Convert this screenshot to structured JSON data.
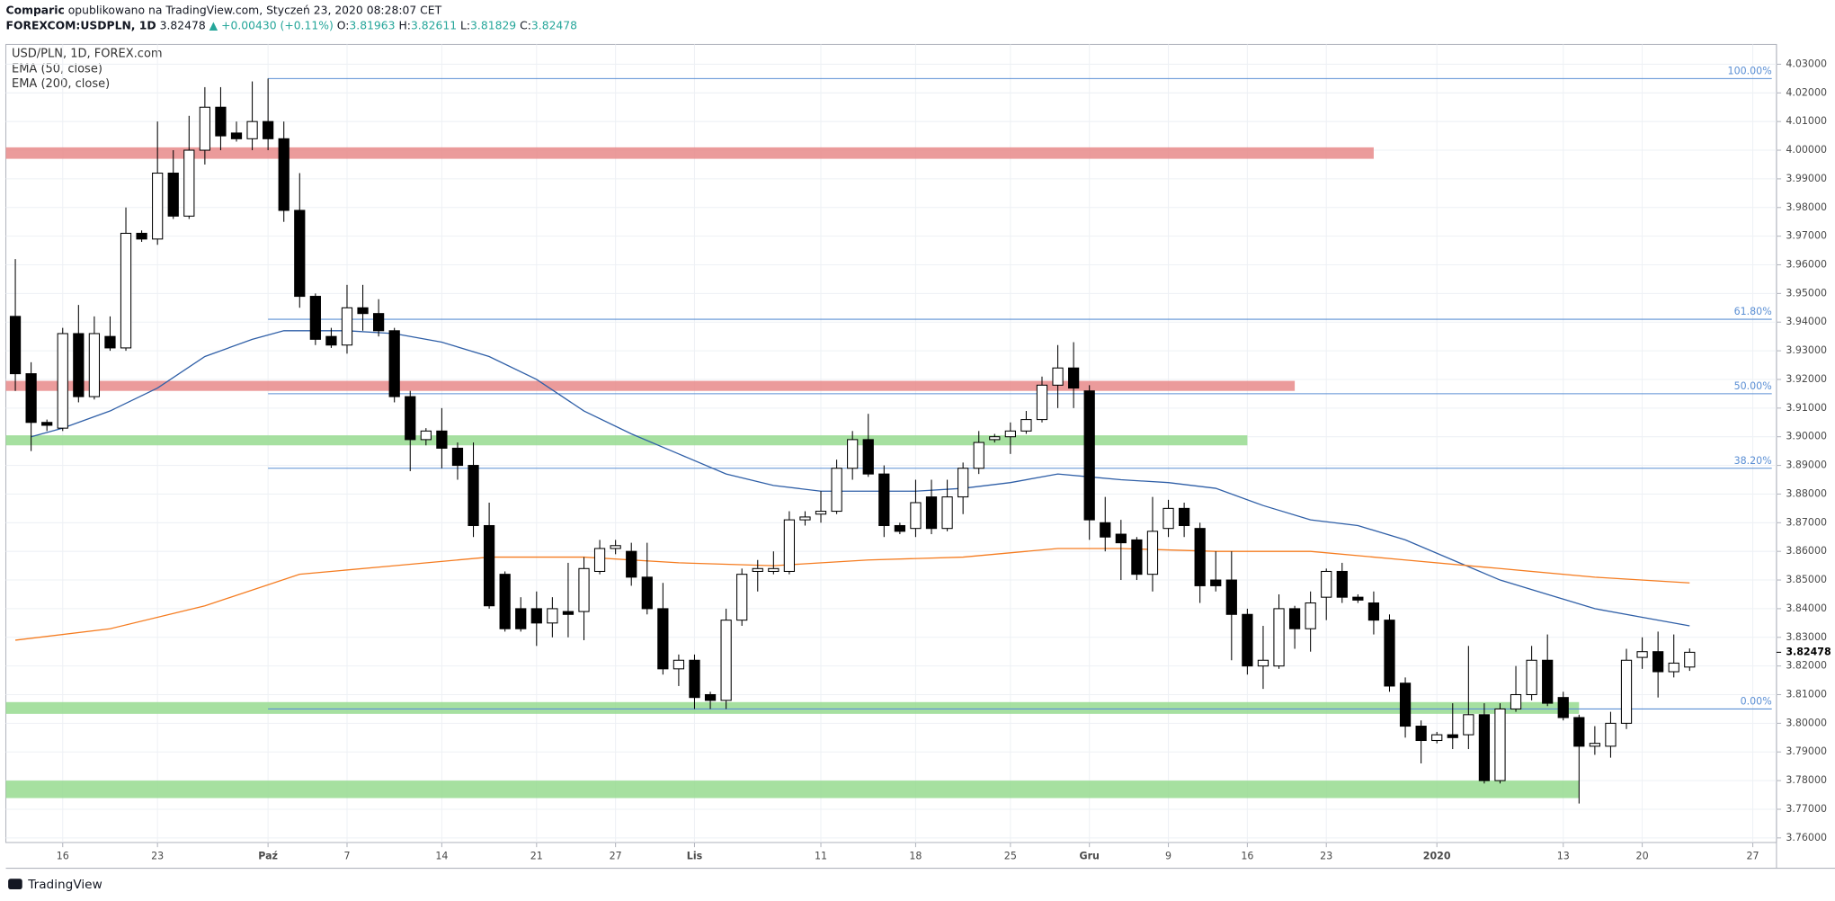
{
  "header": {
    "author": "Comparic",
    "published": "opublikowano na TradingView.com, Styczeń 23, 2020 08:28:07 CET",
    "symbol": "FOREXCOM:USDPLN, 1D",
    "last": "3.82478",
    "change": "▲ +0.00430 (+0.11%)",
    "ohlc": [
      {
        "label": "O:",
        "value": "3.81963"
      },
      {
        "label": "H:",
        "value": "3.82611"
      },
      {
        "label": "L:",
        "value": "3.81829"
      },
      {
        "label": "C:",
        "value": "3.82478"
      }
    ]
  },
  "footer": {
    "brand": "TradingView"
  },
  "chart_data": {
    "type": "candlestick",
    "title": "USD/PLN, 1D, FOREX.com",
    "up_color": "#ffffff",
    "down_color": "#000000",
    "grid": true,
    "xlim": [
      -0.6,
      111.5
    ],
    "ylim": [
      3.7584,
      4.0369
    ],
    "xticks": [
      {
        "value": 3,
        "label": "16"
      },
      {
        "value": 9,
        "label": "23"
      },
      {
        "value": 16,
        "label": "Paź"
      },
      {
        "value": 21,
        "label": "7"
      },
      {
        "value": 27,
        "label": "14"
      },
      {
        "value": 33,
        "label": "21"
      },
      {
        "value": 38,
        "label": "27"
      },
      {
        "value": 43,
        "label": "Lis"
      },
      {
        "value": 51,
        "label": "11"
      },
      {
        "value": 57,
        "label": "18"
      },
      {
        "value": 63,
        "label": "25"
      },
      {
        "value": 68,
        "label": "Gru"
      },
      {
        "value": 73,
        "label": "9"
      },
      {
        "value": 78,
        "label": "16"
      },
      {
        "value": 83,
        "label": "23"
      },
      {
        "value": 90,
        "label": "2020"
      },
      {
        "value": 98,
        "label": "13"
      },
      {
        "value": 103,
        "label": "20"
      },
      {
        "value": 110,
        "label": "27"
      }
    ],
    "yticks": [
      {
        "value": 3.76,
        "label": "3.76000"
      },
      {
        "value": 3.77,
        "label": "3.77000"
      },
      {
        "value": 3.78,
        "label": "3.78000"
      },
      {
        "value": 3.79,
        "label": "3.79000"
      },
      {
        "value": 3.8,
        "label": "3.80000"
      },
      {
        "value": 3.81,
        "label": "3.81000"
      },
      {
        "value": 3.82,
        "label": "3.82000"
      },
      {
        "value": 3.83,
        "label": "3.83000"
      },
      {
        "value": 3.84,
        "label": "3.84000"
      },
      {
        "value": 3.85,
        "label": "3.85000"
      },
      {
        "value": 3.86,
        "label": "3.86000"
      },
      {
        "value": 3.87,
        "label": "3.87000"
      },
      {
        "value": 3.88,
        "label": "3.88000"
      },
      {
        "value": 3.89,
        "label": "3.89000"
      },
      {
        "value": 3.9,
        "label": "3.90000"
      },
      {
        "value": 3.91,
        "label": "3.91000"
      },
      {
        "value": 3.92,
        "label": "3.92000"
      },
      {
        "value": 3.93,
        "label": "3.93000"
      },
      {
        "value": 3.94,
        "label": "3.94000"
      },
      {
        "value": 3.95,
        "label": "3.95000"
      },
      {
        "value": 3.96,
        "label": "3.96000"
      },
      {
        "value": 3.97,
        "label": "3.97000"
      },
      {
        "value": 3.98,
        "label": "3.98000"
      },
      {
        "value": 3.99,
        "label": "3.99000"
      },
      {
        "value": 4.0,
        "label": "4.00000"
      },
      {
        "value": 4.01,
        "label": "4.01000"
      },
      {
        "value": 4.02,
        "label": "4.02000"
      },
      {
        "value": 4.03,
        "label": "4.03000"
      }
    ],
    "last_price": 3.82478,
    "open": [
      3.942,
      3.922,
      3.905,
      3.903,
      3.936,
      3.914,
      3.935,
      3.931,
      3.971,
      3.969,
      3.992,
      3.977,
      4.0,
      4.015,
      4.006,
      4.004,
      4.01,
      4.004,
      3.979,
      3.949,
      3.935,
      3.932,
      3.945,
      3.943,
      3.937,
      3.914,
      3.899,
      3.902,
      3.896,
      3.89,
      3.869,
      3.852,
      3.84,
      3.84,
      3.835,
      3.839,
      3.839,
      3.853,
      3.861,
      3.86,
      3.851,
      3.84,
      3.819,
      3.822,
      3.81,
      3.808,
      3.836,
      3.853,
      3.853,
      3.853,
      3.871,
      3.873,
      3.874,
      3.889,
      3.899,
      3.887,
      3.869,
      3.868,
      3.879,
      3.868,
      3.879,
      3.889,
      3.899,
      3.9,
      3.902,
      3.906,
      3.918,
      3.924,
      3.916,
      3.87,
      3.866,
      3.864,
      3.852,
      3.868,
      3.875,
      3.868,
      3.85,
      3.85,
      3.838,
      3.82,
      3.82,
      3.84,
      3.833,
      3.844,
      3.853,
      3.844,
      3.842,
      3.836,
      3.814,
      3.799,
      3.794,
      3.796,
      3.796,
      3.803,
      3.78,
      3.805,
      3.81,
      3.822,
      3.809,
      3.802,
      3.792,
      3.792,
      3.8,
      3.823,
      3.825,
      3.818,
      3.81963
    ],
    "high": [
      3.962,
      3.926,
      3.906,
      3.938,
      3.946,
      3.942,
      3.942,
      3.98,
      3.972,
      4.01,
      4.0,
      4.012,
      4.022,
      4.022,
      4.01,
      4.024,
      4.025,
      4.01,
      3.992,
      3.95,
      3.938,
      3.953,
      3.953,
      3.948,
      3.938,
      3.916,
      3.903,
      3.91,
      3.898,
      3.898,
      3.877,
      3.853,
      3.844,
      3.846,
      3.844,
      3.856,
      3.858,
      3.864,
      3.864,
      3.863,
      3.863,
      3.849,
      3.824,
      3.824,
      3.811,
      3.84,
      3.854,
      3.857,
      3.86,
      3.874,
      3.874,
      3.881,
      3.892,
      3.902,
      3.908,
      3.89,
      3.87,
      3.885,
      3.885,
      3.885,
      3.891,
      3.902,
      3.901,
      3.905,
      3.909,
      3.921,
      3.932,
      3.933,
      3.918,
      3.879,
      3.871,
      3.865,
      3.879,
      3.878,
      3.877,
      3.87,
      3.86,
      3.86,
      3.84,
      3.834,
      3.845,
      3.841,
      3.846,
      3.854,
      3.856,
      3.845,
      3.846,
      3.838,
      3.816,
      3.801,
      3.797,
      3.807,
      3.827,
      3.807,
      3.807,
      3.82,
      3.827,
      3.831,
      3.811,
      3.803,
      3.799,
      3.804,
      3.826,
      3.83,
      3.832,
      3.831,
      3.82611
    ],
    "low": [
      3.916,
      3.895,
      3.902,
      3.902,
      3.912,
      3.913,
      3.93,
      3.93,
      3.968,
      3.967,
      3.976,
      3.976,
      3.995,
      4.0,
      4.003,
      4.0,
      4.0,
      3.975,
      3.945,
      3.932,
      3.931,
      3.929,
      3.937,
      3.935,
      3.912,
      3.888,
      3.897,
      3.889,
      3.885,
      3.865,
      3.84,
      3.832,
      3.832,
      3.827,
      3.83,
      3.83,
      3.829,
      3.852,
      3.859,
      3.848,
      3.838,
      3.817,
      3.813,
      3.805,
      3.805,
      3.805,
      3.834,
      3.846,
      3.852,
      3.852,
      3.869,
      3.87,
      3.873,
      3.885,
      3.886,
      3.865,
      3.866,
      3.865,
      3.866,
      3.867,
      3.873,
      3.887,
      3.898,
      3.894,
      3.901,
      3.905,
      3.91,
      3.91,
      3.864,
      3.86,
      3.85,
      3.85,
      3.846,
      3.865,
      3.865,
      3.842,
      3.846,
      3.822,
      3.817,
      3.812,
      3.819,
      3.826,
      3.825,
      3.836,
      3.842,
      3.842,
      3.831,
      3.811,
      3.795,
      3.786,
      3.793,
      3.791,
      3.791,
      3.779,
      3.779,
      3.804,
      3.808,
      3.806,
      3.801,
      3.772,
      3.789,
      3.788,
      3.798,
      3.819,
      3.809,
      3.816,
      3.81829
    ],
    "close": [
      3.922,
      3.905,
      3.904,
      3.936,
      3.914,
      3.936,
      3.931,
      3.971,
      3.969,
      3.992,
      3.977,
      4.0,
      4.015,
      4.005,
      4.004,
      4.01,
      4.004,
      3.979,
      3.949,
      3.934,
      3.932,
      3.945,
      3.943,
      3.937,
      3.914,
      3.899,
      3.902,
      3.896,
      3.89,
      3.869,
      3.841,
      3.833,
      3.833,
      3.835,
      3.84,
      3.838,
      3.854,
      3.861,
      3.862,
      3.851,
      3.84,
      3.819,
      3.822,
      3.809,
      3.808,
      3.836,
      3.852,
      3.854,
      3.854,
      3.871,
      3.872,
      3.874,
      3.889,
      3.899,
      3.887,
      3.869,
      3.867,
      3.877,
      3.868,
      3.879,
      3.889,
      3.898,
      3.9,
      3.902,
      3.906,
      3.918,
      3.924,
      3.917,
      3.871,
      3.865,
      3.863,
      3.852,
      3.867,
      3.875,
      3.869,
      3.848,
      3.848,
      3.838,
      3.82,
      3.822,
      3.84,
      3.833,
      3.842,
      3.853,
      3.844,
      3.843,
      3.836,
      3.813,
      3.799,
      3.794,
      3.796,
      3.795,
      3.803,
      3.78,
      3.805,
      3.81,
      3.822,
      3.807,
      3.802,
      3.792,
      3.793,
      3.8,
      3.822,
      3.825,
      3.818,
      3.821,
      3.82478
    ],
    "series": [
      {
        "name": "EMA (50, close)",
        "color": "#2f5fa7",
        "x": [
          1,
          3,
          6,
          9,
          12,
          15,
          17,
          21,
          24,
          27,
          30,
          33,
          36,
          39,
          42,
          45,
          48,
          51,
          54,
          57,
          60,
          63,
          66,
          68,
          70,
          73,
          76,
          79,
          82,
          85,
          88,
          91,
          94,
          97,
          100,
          103,
          106
        ],
        "values": [
          3.9,
          3.903,
          3.909,
          3.917,
          3.928,
          3.934,
          3.937,
          3.937,
          3.936,
          3.933,
          3.928,
          3.92,
          3.909,
          3.901,
          3.894,
          3.887,
          3.883,
          3.881,
          3.881,
          3.881,
          3.882,
          3.884,
          3.887,
          3.886,
          3.885,
          3.884,
          3.882,
          3.876,
          3.871,
          3.869,
          3.864,
          3.857,
          3.85,
          3.845,
          3.84,
          3.837,
          3.834
        ]
      },
      {
        "name": "EMA (200, close)",
        "color": "#f57c20",
        "x": [
          0,
          6,
          12,
          18,
          24,
          30,
          36,
          42,
          48,
          54,
          60,
          66,
          70,
          76,
          82,
          88,
          94,
          100,
          106
        ],
        "values": [
          3.829,
          3.833,
          3.841,
          3.852,
          3.855,
          3.858,
          3.858,
          3.856,
          3.855,
          3.857,
          3.858,
          3.861,
          3.861,
          3.86,
          3.86,
          3.857,
          3.854,
          3.851,
          3.849
        ]
      }
    ],
    "fib": {
      "start": 16,
      "color": "#5b8fd4",
      "levels": [
        {
          "label": "100.00%",
          "price": 4.025
        },
        {
          "label": "61.80%",
          "price": 3.941
        },
        {
          "label": "50.00%",
          "price": 3.915
        },
        {
          "label": "38.20%",
          "price": 3.889
        },
        {
          "label": "0.00%",
          "price": 3.805
        }
      ]
    },
    "zones": [
      {
        "color": "#e88a8a",
        "low": 3.997,
        "high": 4.001,
        "end": 86
      },
      {
        "color": "#e88a8a",
        "low": 3.916,
        "high": 3.9195,
        "end": 81
      },
      {
        "color": "#96db8f",
        "low": 3.897,
        "high": 3.9005,
        "end": 78
      },
      {
        "color": "#96db8f",
        "low": 3.8033,
        "high": 3.8074,
        "end": 99
      },
      {
        "color": "#96db8f",
        "low": 3.7739,
        "high": 3.78,
        "end": 99
      }
    ]
  }
}
